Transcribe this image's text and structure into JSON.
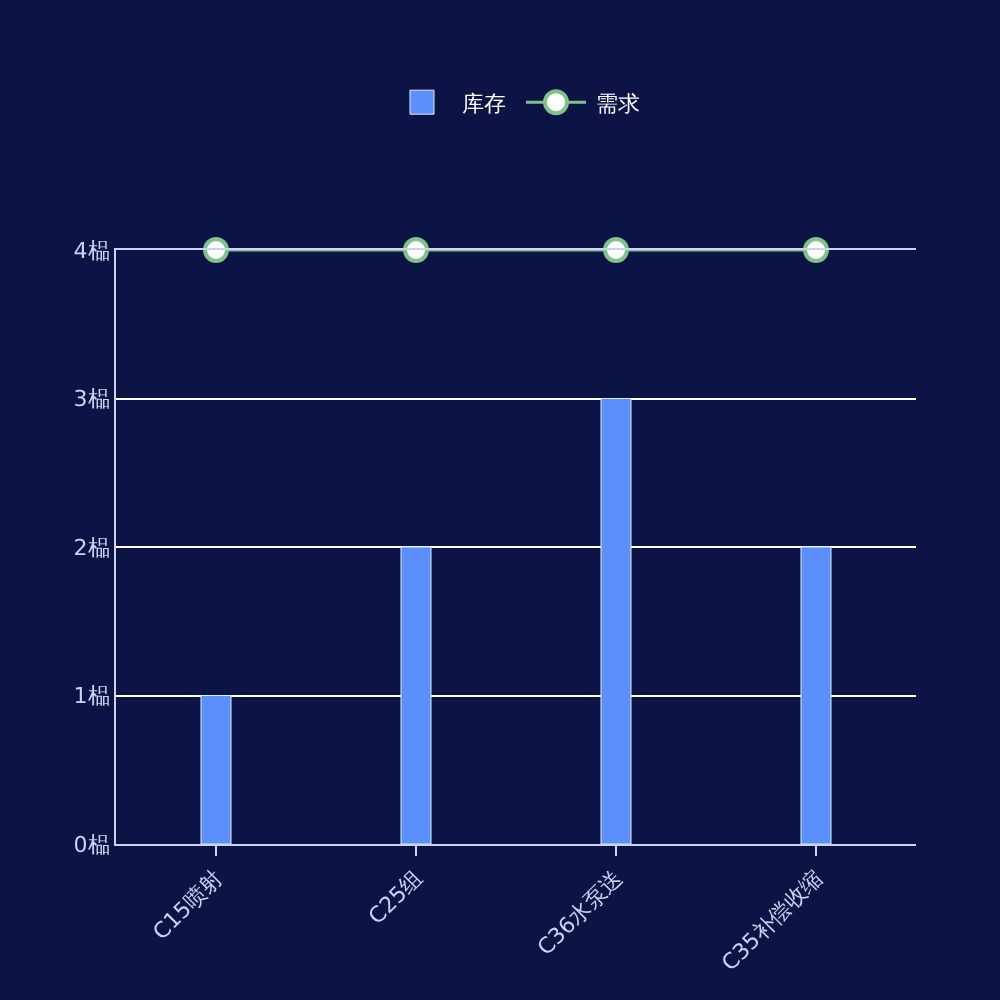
{
  "chart_data": {
    "type": "bar",
    "categories": [
      "C15喷射",
      "C25组",
      "C36水泵送",
      "C35补偿收缩"
    ],
    "series": [
      {
        "name": "库存",
        "color": "#5b8ff9",
        "values": [
          1,
          2,
          3,
          2
        ]
      },
      {
        "name": "需求",
        "type": "line",
        "color": "#7fc28a",
        "values": [
          4,
          4,
          4,
          4
        ]
      }
    ],
    "ylim": [
      0,
      4
    ],
    "yticks": [
      {
        "value": 0,
        "label": "0榀"
      },
      {
        "value": 1,
        "label": "1榀"
      },
      {
        "value": 2,
        "label": "2榀"
      },
      {
        "value": 3,
        "label": "3榀"
      },
      {
        "value": 4,
        "label": "4榀"
      }
    ],
    "grid": "y",
    "legend": "top",
    "marker": "circle"
  }
}
